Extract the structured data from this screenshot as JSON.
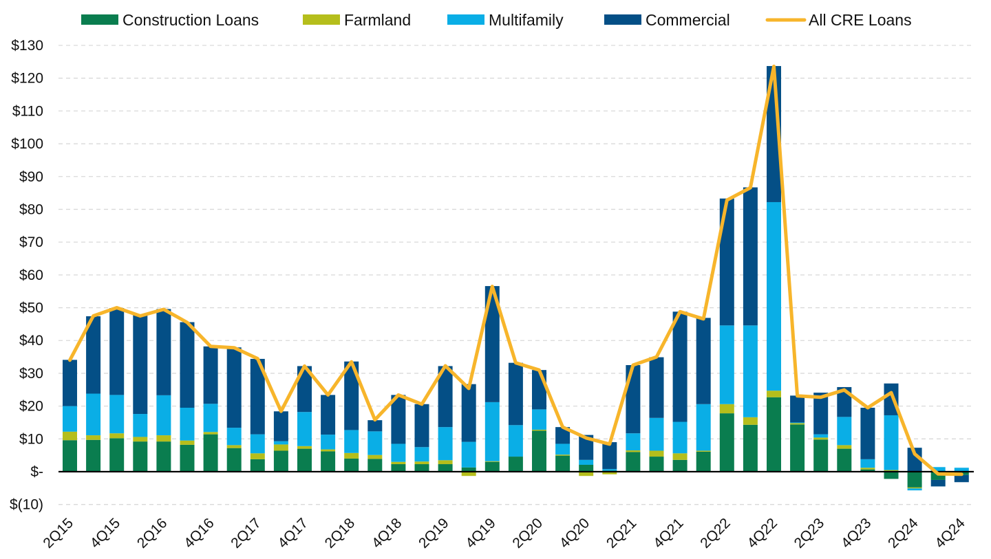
{
  "chart_data": {
    "type": "bar",
    "stacked": true,
    "x": [
      "2Q15",
      "3Q15",
      "4Q15",
      "1Q16",
      "2Q16",
      "3Q16",
      "4Q16",
      "1Q17",
      "2Q17",
      "3Q17",
      "4Q17",
      "1Q18",
      "2Q18",
      "3Q18",
      "4Q18",
      "1Q19",
      "2Q19",
      "3Q19",
      "4Q19",
      "1Q20",
      "2Q20",
      "3Q20",
      "4Q20",
      "1Q21",
      "2Q21",
      "3Q21",
      "4Q21",
      "1Q22",
      "2Q22",
      "3Q22",
      "4Q22",
      "1Q23",
      "2Q23",
      "3Q23",
      "4Q23",
      "1Q24",
      "2Q24",
      "3Q24",
      "4Q24"
    ],
    "xtick_labels": [
      "2Q15",
      "4Q15",
      "2Q16",
      "4Q16",
      "2Q17",
      "4Q17",
      "2Q18",
      "4Q18",
      "2Q19",
      "4Q19",
      "2Q20",
      "4Q20",
      "2Q21",
      "4Q21",
      "2Q22",
      "4Q22",
      "2Q23",
      "4Q23",
      "2Q24",
      "4Q24"
    ],
    "series": [
      {
        "name": "Construction Loans",
        "kind": "bar",
        "color": "#0a7d4f",
        "values": [
          9.6,
          9.7,
          10.2,
          9.2,
          9.2,
          8.2,
          11.4,
          7.2,
          3.8,
          6.4,
          7.0,
          6.2,
          4.0,
          3.9,
          2.3,
          2.3,
          2.3,
          1.3,
          3.0,
          4.6,
          12.5,
          4.9,
          2.1,
          0.3,
          6.0,
          4.6,
          3.6,
          6.1,
          17.8,
          14.3,
          22.7,
          14.4,
          9.8,
          7.0,
          0.7,
          -2.2,
          -4.8,
          -2.5,
          -1.0
        ]
      },
      {
        "name": "Farmland",
        "kind": "bar",
        "color": "#b5be1c",
        "values": [
          2.6,
          1.4,
          1.5,
          1.4,
          1.9,
          1.3,
          0.7,
          0.9,
          1.8,
          1.9,
          0.8,
          0.6,
          1.7,
          1.2,
          0.7,
          0.8,
          1.2,
          -1.3,
          0.2,
          0.0,
          0.3,
          0.3,
          -1.3,
          -0.8,
          0.5,
          1.8,
          2.0,
          0.3,
          2.8,
          2.3,
          2.0,
          0.4,
          0.6,
          1.1,
          0.5,
          0.5,
          -0.3,
          0.2,
          0.0
        ]
      },
      {
        "name": "Multifamily",
        "kind": "bar",
        "color": "#0aaee6",
        "values": [
          7.8,
          12.7,
          11.7,
          7.0,
          12.2,
          10.0,
          8.6,
          5.3,
          5.8,
          1.0,
          10.4,
          4.5,
          7.0,
          7.2,
          5.5,
          4.4,
          10.1,
          7.8,
          18.0,
          9.6,
          6.2,
          3.3,
          1.5,
          0.5,
          5.2,
          10.0,
          9.6,
          14.2,
          24.0,
          28.0,
          57.5,
          0.2,
          1.0,
          8.6,
          2.6,
          16.7,
          -0.6,
          1.2,
          1.2
        ]
      },
      {
        "name": "Commercial",
        "kind": "bar",
        "color": "#044f86",
        "values": [
          14.1,
          23.6,
          26.5,
          30.2,
          26.3,
          26.1,
          17.5,
          24.5,
          23.0,
          9.1,
          14.0,
          12.1,
          20.9,
          3.4,
          14.9,
          13.1,
          18.6,
          17.6,
          35.4,
          19.0,
          12.0,
          5.1,
          7.6,
          8.2,
          20.8,
          18.5,
          33.6,
          26.3,
          38.7,
          42.1,
          41.5,
          8.2,
          12.7,
          9.1,
          15.7,
          9.7,
          7.3,
          -2.0,
          -2.2
        ]
      },
      {
        "name": "All CRE Loans",
        "kind": "line",
        "color": "#f7b52b",
        "values": [
          34.0,
          47.5,
          50.0,
          47.5,
          49.5,
          45.5,
          38.2,
          37.8,
          34.5,
          18.4,
          32.2,
          23.4,
          33.5,
          15.8,
          23.4,
          20.6,
          32.3,
          25.4,
          56.5,
          33.2,
          31.0,
          13.6,
          10.3,
          8.4,
          32.5,
          35.0,
          48.8,
          46.6,
          82.8,
          86.6,
          123.6,
          23.1,
          22.7,
          24.9,
          19.5,
          24.1,
          5.4,
          -0.7,
          -0.8
        ]
      }
    ],
    "ylim": [
      -10,
      130
    ],
    "yticks": [
      -10,
      0,
      10,
      20,
      30,
      40,
      50,
      60,
      70,
      80,
      90,
      100,
      110,
      120,
      130
    ],
    "ytick_labels": [
      "$(10)",
      "$-",
      "$10",
      "$20",
      "$30",
      "$40",
      "$50",
      "$60",
      "$70",
      "$80",
      "$90",
      "$100",
      "$110",
      "$120",
      "$130"
    ],
    "legend_position": "top",
    "grid": "horizontal dashed",
    "title": "",
    "xlabel": "",
    "ylabel": ""
  }
}
